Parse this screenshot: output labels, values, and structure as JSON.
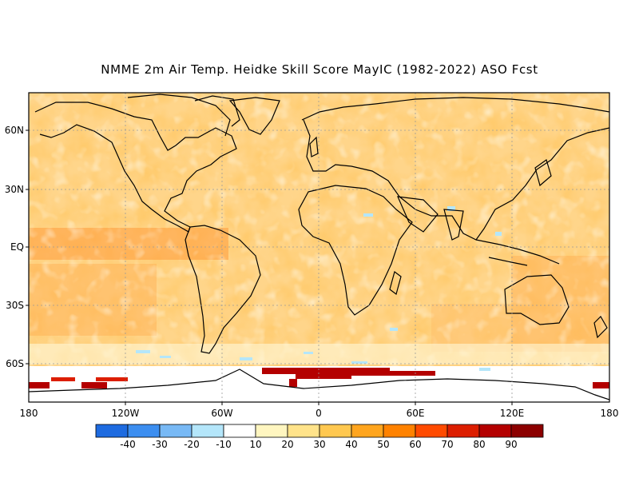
{
  "title": "NMME 2m Air Temp. Heidke Skill Score MayIC (1982-2022) ASO Fcst",
  "lat_labels": [
    "60N",
    "30N",
    "EQ",
    "30S",
    "60S"
  ],
  "lon_labels": [
    "180",
    "120W",
    "60W",
    "0",
    "60E",
    "120E",
    "180"
  ],
  "colorbar": {
    "labels": [
      "-40",
      "-30",
      "-20",
      "-10",
      "10",
      "20",
      "30",
      "40",
      "50",
      "60",
      "70",
      "80",
      "90"
    ],
    "colors": [
      "#1e6be0",
      "#3c8ef0",
      "#78b9f5",
      "#b4e6fa",
      "#ffffff",
      "#fff6c0",
      "#ffe38a",
      "#ffc850",
      "#ffa51e",
      "#ff8200",
      "#ff4b00",
      "#dc1e00",
      "#b40000",
      "#8c0000"
    ]
  },
  "chart_data": {
    "type": "heatmap",
    "title": "NMME 2m Air Temp. Heidke Skill Score MayIC (1982-2022) ASO Fcst",
    "xlabel": "",
    "ylabel": "",
    "x_range": [
      -180,
      180
    ],
    "y_range": [
      -75,
      80
    ],
    "scale": [
      -40,
      -30,
      -20,
      -10,
      10,
      20,
      30,
      40,
      50,
      60,
      70,
      80,
      90
    ],
    "description_values": "mostly positive skill 10-50 over oceans and tropics; max 80-90 along Antarctic coast"
  }
}
